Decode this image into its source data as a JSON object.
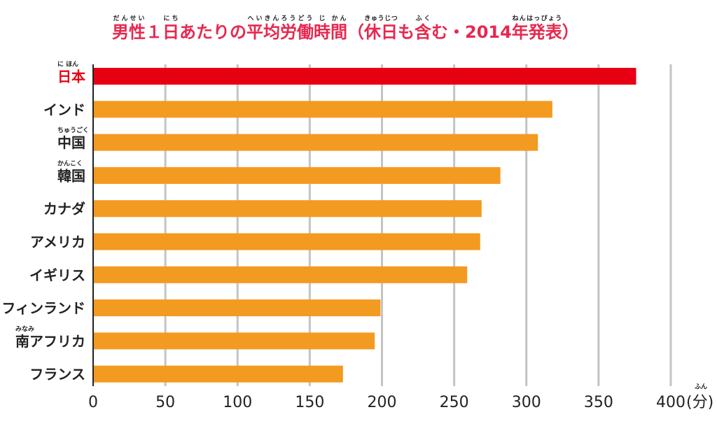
{
  "chart_data": {
    "type": "barh",
    "title_segments": [
      {
        "text": "男性",
        "ruby": "だんせい"
      },
      {
        "text": "１"
      },
      {
        "text": "日",
        "ruby": "にち"
      },
      {
        "text": "あたりの"
      },
      {
        "text": "平均労働時間",
        "ruby": "へいきんろうどう じ かん"
      },
      {
        "text": "（"
      },
      {
        "text": "休日",
        "ruby": "きゅうじつ"
      },
      {
        "text": "も"
      },
      {
        "text": "含",
        "ruby": "ふく"
      },
      {
        "text": "む・2014"
      },
      {
        "text": "年発表",
        "ruby": "ねんはっぴょう"
      },
      {
        "text": "）"
      }
    ],
    "categories": [
      "日本",
      "インド",
      "中国",
      "韓国",
      "カナダ",
      "アメリカ",
      "イギリス",
      "フィンランド",
      "南アフリカ",
      "フランス"
    ],
    "category_readings": [
      "に ほん",
      null,
      "ちゅうごく",
      "かんこく",
      null,
      null,
      null,
      null,
      "みなみ",
      null
    ],
    "values": [
      376,
      318,
      308,
      282,
      269,
      268,
      259,
      199,
      195,
      173
    ],
    "colors": [
      "#e60012",
      "#f39a21",
      "#f39a21",
      "#f39a21",
      "#f39a21",
      "#f39a21",
      "#f39a21",
      "#f39a21",
      "#f39a21",
      "#f39a21"
    ],
    "label_colors": [
      "#e60012",
      "#222222",
      "#222222",
      "#222222",
      "#222222",
      "#222222",
      "#222222",
      "#222222",
      "#222222",
      "#222222"
    ],
    "xlim": [
      0,
      400
    ],
    "xticks": [
      0,
      50,
      100,
      150,
      200,
      250,
      300,
      350,
      400
    ],
    "unit": "(分)",
    "unit_reading": "ふん",
    "grid": true
  }
}
